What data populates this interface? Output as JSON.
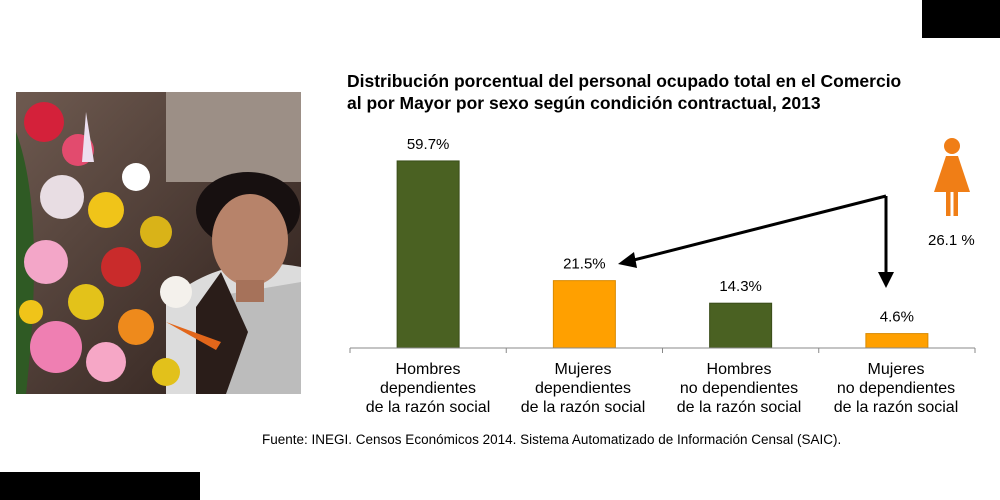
{
  "chart_data": {
    "type": "bar",
    "title_lines": [
      "Distribución porcentual del personal ocupado total en el Comercio",
      "al por Mayor por sexo según condición contractual, 2013"
    ],
    "categories": [
      [
        "Hombres",
        "dependientes",
        "de la razón social"
      ],
      [
        "Mujeres",
        "dependientes",
        "de la razón social"
      ],
      [
        "Hombres",
        "no dependientes",
        "de la razón social"
      ],
      [
        "Mujeres",
        "no dependientes",
        "de la razón social"
      ]
    ],
    "values": [
      59.7,
      21.5,
      14.3,
      4.6
    ],
    "data_labels": [
      "59.7%",
      "21.5%",
      "14.3%",
      "4.6%"
    ],
    "ylim": [
      0,
      60
    ],
    "grid": false,
    "bar_colors": [
      "#4a6122",
      "#ffa000",
      "#4a6122",
      "#ffa000"
    ]
  },
  "women_total": "26.1 %",
  "source": "Fuente: INEGI. Censos Económicos 2014. Sistema Automatizado de Información Censal (SAIC).",
  "colors": {
    "men": "#4a6122",
    "women": "#ffa000",
    "woman_icon": "#f07e16"
  }
}
